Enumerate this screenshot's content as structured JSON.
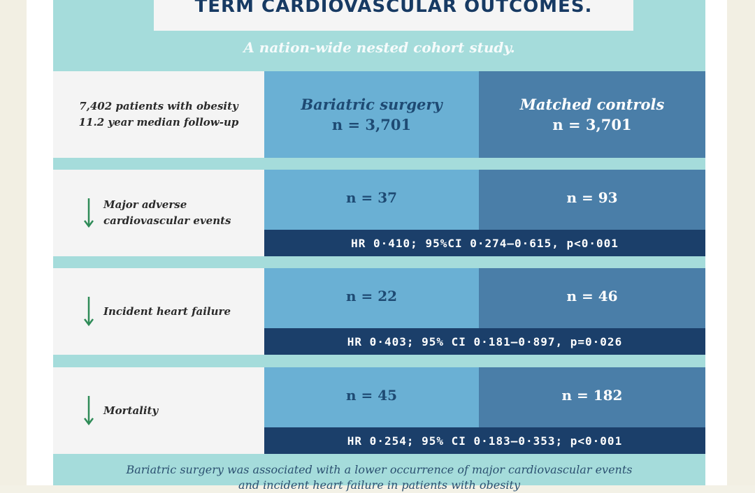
{
  "title": "TERM CARDIOVASCULAR OUTCOMES.",
  "subtitle": "A nation-wide nested cohort study.",
  "cohort": {
    "line1": "7,402 patients with obesity",
    "line2": "11.2 year median follow-up"
  },
  "groups": [
    {
      "name": "Bariatric surgery",
      "n": "n = 3,701"
    },
    {
      "name": "Matched controls",
      "n": "n = 3,701"
    }
  ],
  "outcomes": [
    {
      "label_line1": "Major adverse",
      "label_line2": "cardiovascular events",
      "surgery_n": "n = 37",
      "control_n": "n = 93",
      "hr": "HR 0·410; 95%CI 0·274–0·615, p<0·001",
      "icon": "down-arrow-icon"
    },
    {
      "label_line1": "Incident heart failure",
      "label_line2": "",
      "surgery_n": "n = 22",
      "control_n": "n = 46",
      "hr": "HR 0·403; 95% CI 0·181–0·897, p=0·026",
      "icon": "down-arrow-icon"
    },
    {
      "label_line1": "Mortality",
      "label_line2": "",
      "surgery_n": "n = 45",
      "control_n": "n = 182",
      "hr": "HR 0·254; 95% CI 0·183–0·353; p<0·001",
      "icon": "down-arrow-icon"
    }
  ],
  "footer": {
    "line1": "Bariatric surgery was associated with a lower occurrence of major cardiovascular events",
    "line2": "and incident heart failure in patients with obesity"
  },
  "colors": {
    "panel": "#a5dcdb",
    "label_bg": "#f4f4f4",
    "surgery_bg": "#6ab0d4",
    "control_bg": "#4a7ea8",
    "hr_bg": "#1b3f6a",
    "arrow": "#2e8b57"
  }
}
